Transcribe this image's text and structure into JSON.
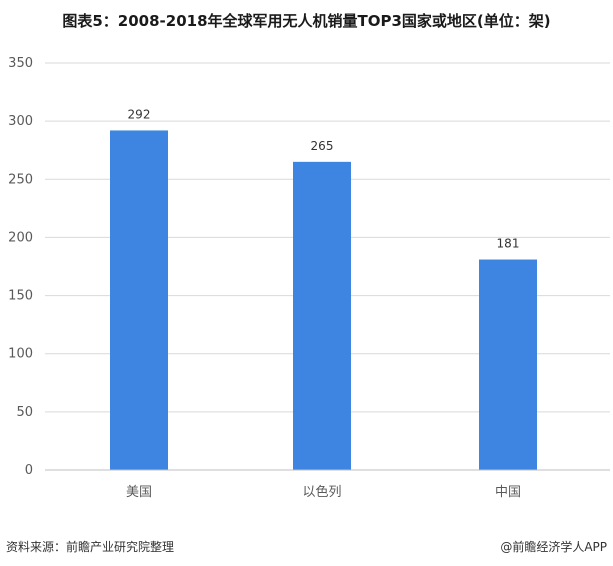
{
  "title": "图表5：2008-2018年全球军用无人机销量TOP3国家或地区(单位：架)",
  "source": "资料来源：前瞻产业研究院整理",
  "credit": "@前瞻经济学人APP",
  "colors": {
    "bar": "#3d85e0",
    "grid": "#d9d9d9",
    "axis": "#bfbfbf",
    "text": "#595959"
  },
  "chart_data": {
    "type": "bar",
    "categories": [
      "美国",
      "以色列",
      "中国"
    ],
    "values": [
      292,
      265,
      181
    ],
    "yticks": [
      0,
      50,
      100,
      150,
      200,
      250,
      300,
      350
    ],
    "ylim": [
      0,
      350
    ],
    "grid": true,
    "data_labels": true
  }
}
